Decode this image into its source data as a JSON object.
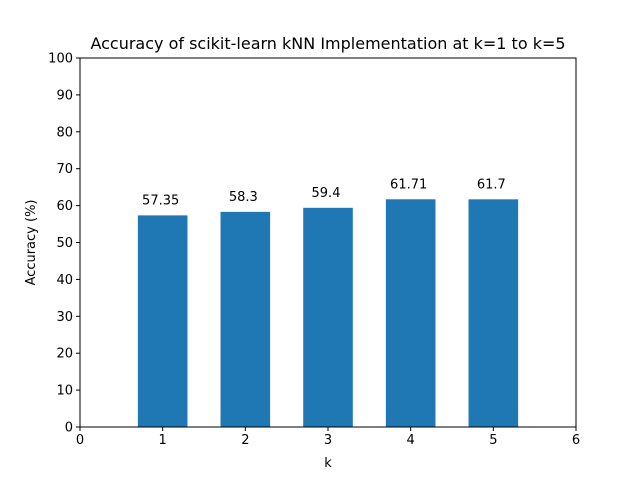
{
  "chart_data": {
    "type": "bar",
    "title": "Accuracy of scikit-learn kNN Implementation at k=1 to k=5",
    "xlabel": "k",
    "ylabel": "Accuracy (%)",
    "x": [
      1,
      2,
      3,
      4,
      5
    ],
    "values": [
      57.35,
      58.3,
      59.4,
      61.71,
      61.7
    ],
    "data_labels": [
      "57.35",
      "58.3",
      "59.4",
      "61.71",
      "61.7"
    ],
    "xlim": [
      0,
      6
    ],
    "ylim": [
      0,
      100
    ],
    "xticks": [
      "0",
      "1",
      "2",
      "3",
      "4",
      "5",
      "6"
    ],
    "yticks": [
      "0",
      "10",
      "20",
      "30",
      "40",
      "50",
      "60",
      "70",
      "80",
      "90",
      "100"
    ],
    "grid": false,
    "legend": "none",
    "bar_color": "#1f77b4"
  }
}
